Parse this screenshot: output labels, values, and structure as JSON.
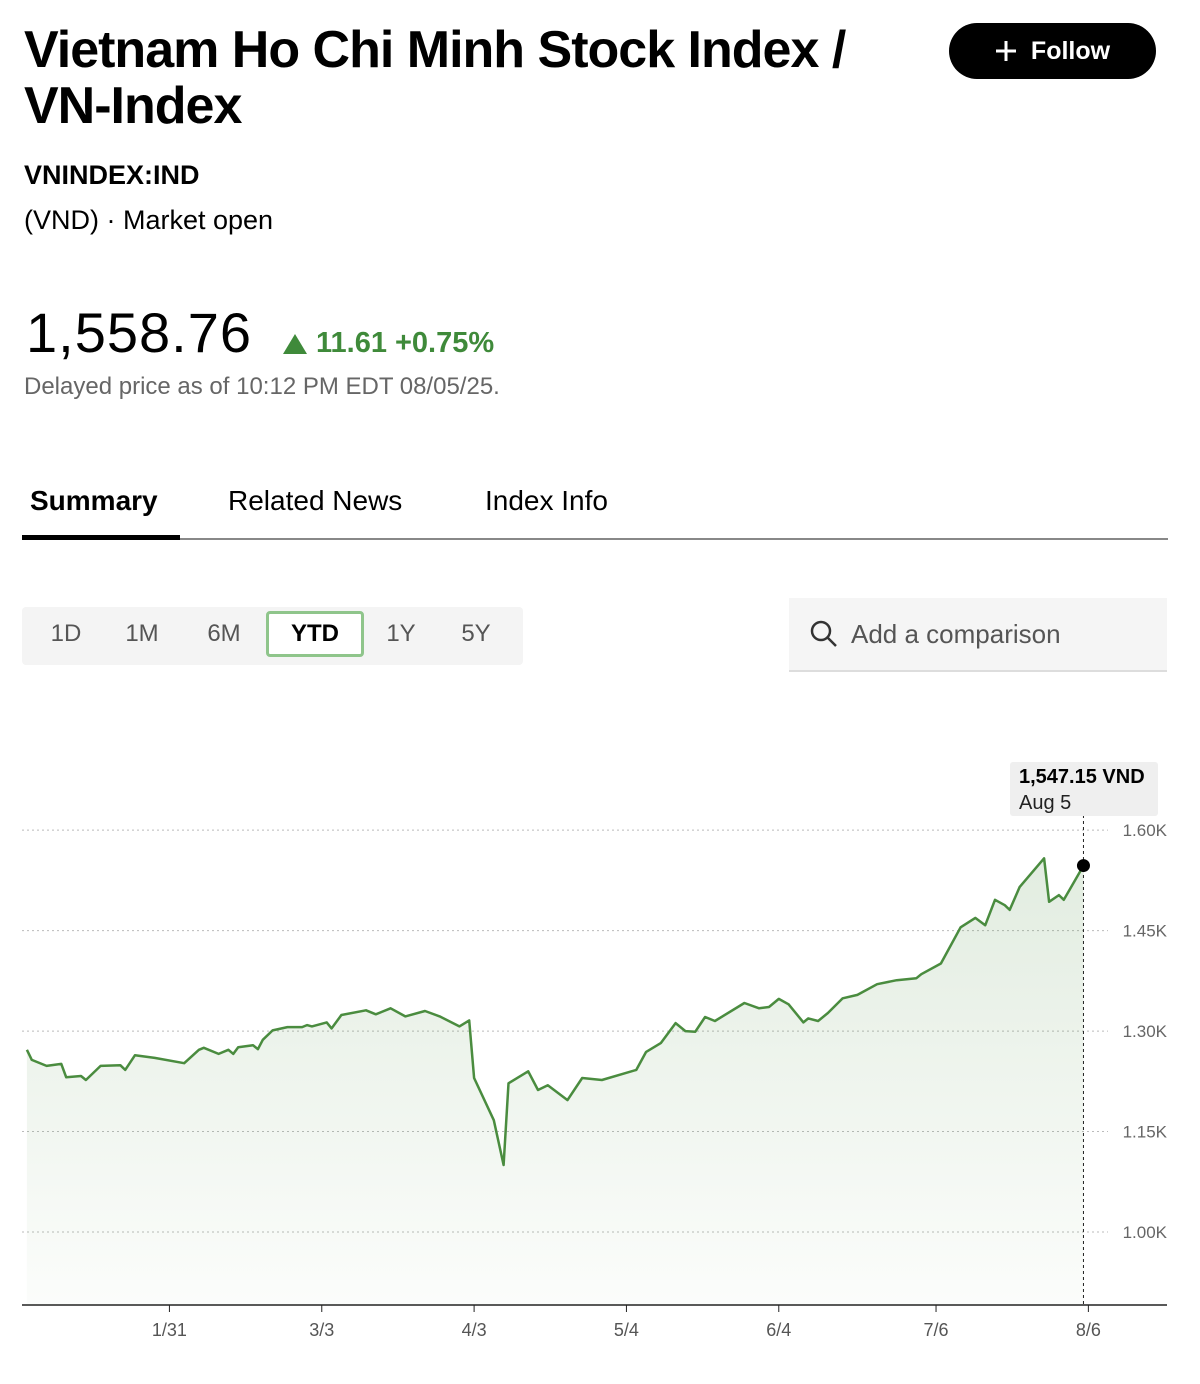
{
  "header": {
    "title": "Vietnam Ho Chi Minh Stock Index / VN-Index",
    "follow": "Follow",
    "ticker": "VNINDEX:IND",
    "status": "(VND) · Market open",
    "price": "1,558.76",
    "change": "11.61",
    "change_pct": "+0.75%",
    "delayed": "Delayed price as of 10:12 PM EDT 08/05/25."
  },
  "tabs": {
    "items": [
      "Summary",
      "Related News",
      "Index Info"
    ],
    "active": 0
  },
  "ranges": {
    "items": [
      "1D",
      "1M",
      "6M",
      "YTD",
      "1Y",
      "5Y"
    ],
    "active": 3
  },
  "search": {
    "placeholder": "Add a comparison"
  },
  "chart_data": {
    "type": "line",
    "color": "#4a8c3f",
    "grid": true,
    "tooltip": {
      "value": "1,547.15 VND",
      "date": "Aug 5"
    },
    "x": [
      "1/2",
      "1/3",
      "1/6",
      "1/9",
      "1/10",
      "1/13",
      "1/14",
      "1/17",
      "1/21",
      "1/22",
      "1/24",
      "1/28",
      "2/3",
      "2/6",
      "2/7",
      "2/10",
      "2/12",
      "2/13",
      "2/14",
      "2/17",
      "2/18",
      "2/19",
      "2/21",
      "2/24",
      "2/27",
      "2/28",
      "3/1",
      "3/4",
      "3/5",
      "3/7",
      "3/12",
      "3/14",
      "3/17",
      "3/20",
      "3/24",
      "3/27",
      "3/31",
      "4/2",
      "4/3",
      "4/7",
      "4/9",
      "4/10",
      "4/14",
      "4/16",
      "4/18",
      "4/22",
      "4/25",
      "4/29",
      "5/6",
      "5/8",
      "5/11",
      "5/14",
      "5/16",
      "5/18",
      "5/20",
      "5/22",
      "5/28",
      "5/31",
      "6/2",
      "6/4",
      "6/6",
      "6/9",
      "6/10",
      "6/12",
      "6/14",
      "6/17",
      "6/20",
      "6/24",
      "6/28",
      "7/2",
      "7/3",
      "7/7",
      "7/11",
      "7/14",
      "7/16",
      "7/18",
      "7/20",
      "7/21",
      "7/23",
      "7/28",
      "7/29",
      "7/31",
      "8/1",
      "8/5"
    ],
    "values": [
      1272,
      1257,
      1248,
      1251,
      1231,
      1233,
      1227,
      1248,
      1249,
      1242,
      1264,
      1260,
      1252,
      1272,
      1275,
      1266,
      1272,
      1266,
      1276,
      1279,
      1273,
      1287,
      1301,
      1306,
      1306,
      1309,
      1307,
      1313,
      1304,
      1324,
      1331,
      1325,
      1334,
      1322,
      1330,
      1322,
      1307,
      1316,
      1230,
      1167,
      1100,
      1222,
      1240,
      1212,
      1219,
      1197,
      1230,
      1227,
      1242,
      1269,
      1282,
      1312,
      1300,
      1299,
      1321,
      1315,
      1342,
      1334,
      1336,
      1348,
      1340,
      1313,
      1319,
      1315,
      1327,
      1349,
      1354,
      1370,
      1376,
      1379,
      1385,
      1401,
      1455,
      1469,
      1458,
      1496,
      1488,
      1481,
      1515,
      1558,
      1493,
      1503,
      1496,
      1547.15
    ],
    "xlim": [
      "1/1",
      "8/22"
    ],
    "xticks": [
      "1/31",
      "3/3",
      "4/3",
      "5/4",
      "6/4",
      "7/6",
      "8/6"
    ],
    "ylim": [
      891,
      1660
    ],
    "yticks": [
      {
        "value": 1000,
        "label": "1.00K"
      },
      {
        "value": 1150,
        "label": "1.15K"
      },
      {
        "value": 1300,
        "label": "1.30K"
      },
      {
        "value": 1450,
        "label": "1.45K"
      },
      {
        "value": 1600,
        "label": "1.60K"
      }
    ]
  }
}
